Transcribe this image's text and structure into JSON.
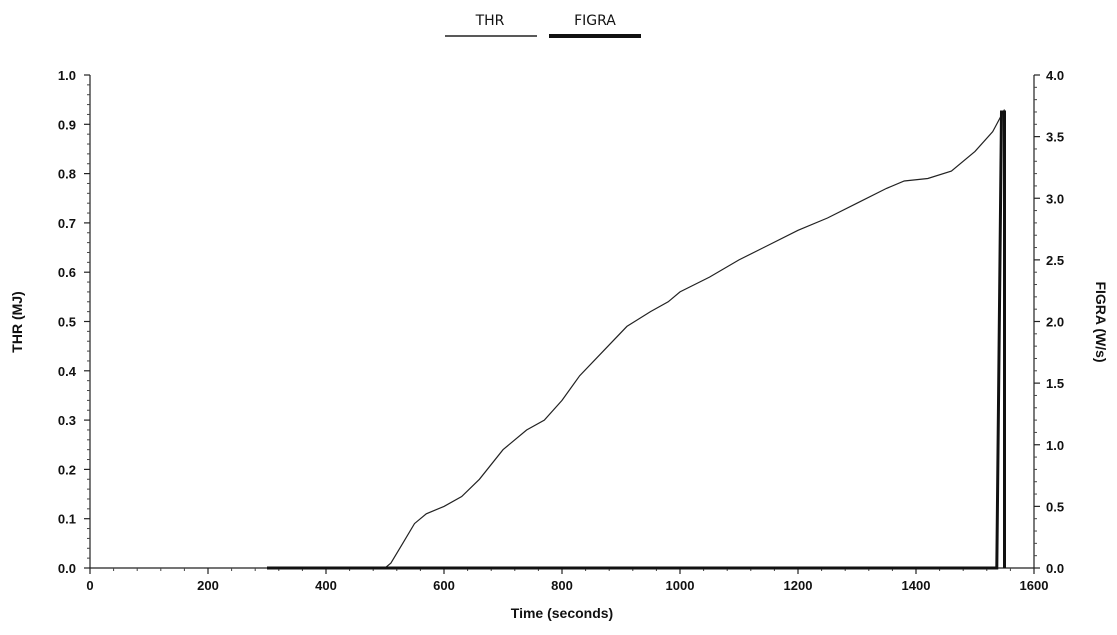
{
  "chart_data": {
    "type": "line",
    "title": "",
    "xlabel": "Time (seconds)",
    "ylabel": "THR (MJ)",
    "y2label": "FIGRA (W/s)",
    "xlim": [
      0,
      1600
    ],
    "ylim": [
      0,
      1.0
    ],
    "y2lim": [
      0,
      4.0
    ],
    "x_ticks": [
      "0",
      "200",
      "400",
      "600",
      "800",
      "1000",
      "1200",
      "1400",
      "1600"
    ],
    "y_ticks": [
      "0.0",
      "0.1",
      "0.2",
      "0.3",
      "0.4",
      "0.5",
      "0.6",
      "0.7",
      "0.8",
      "0.9",
      "1.0"
    ],
    "y2_ticks": [
      "0.0",
      "0.5",
      "1.0",
      "1.5",
      "2.0",
      "2.5",
      "3.0",
      "3.5",
      "4.0"
    ],
    "grid": false,
    "legend_placement": "top-center",
    "series": [
      {
        "name": "THR",
        "axis": "left",
        "color": "#222222",
        "style": "thin",
        "points": [
          [
            300,
            0.0
          ],
          [
            500,
            0.0
          ],
          [
            510,
            0.01
          ],
          [
            530,
            0.05
          ],
          [
            550,
            0.09
          ],
          [
            570,
            0.11
          ],
          [
            600,
            0.125
          ],
          [
            630,
            0.145
          ],
          [
            660,
            0.18
          ],
          [
            700,
            0.24
          ],
          [
            740,
            0.28
          ],
          [
            770,
            0.3
          ],
          [
            800,
            0.34
          ],
          [
            830,
            0.39
          ],
          [
            870,
            0.44
          ],
          [
            910,
            0.49
          ],
          [
            950,
            0.52
          ],
          [
            980,
            0.54
          ],
          [
            1000,
            0.56
          ],
          [
            1050,
            0.59
          ],
          [
            1100,
            0.625
          ],
          [
            1150,
            0.655
          ],
          [
            1200,
            0.685
          ],
          [
            1250,
            0.71
          ],
          [
            1300,
            0.74
          ],
          [
            1350,
            0.77
          ],
          [
            1380,
            0.785
          ],
          [
            1420,
            0.79
          ],
          [
            1460,
            0.805
          ],
          [
            1500,
            0.845
          ],
          [
            1530,
            0.885
          ],
          [
            1550,
            0.93
          ]
        ]
      },
      {
        "name": "FIGRA",
        "axis": "right",
        "color": "#111111",
        "style": "thick",
        "points": [
          [
            300,
            0.0
          ],
          [
            1537,
            0.0
          ],
          [
            1545,
            3.7
          ],
          [
            1550,
            3.7
          ],
          [
            1550,
            0.0
          ]
        ]
      }
    ]
  }
}
